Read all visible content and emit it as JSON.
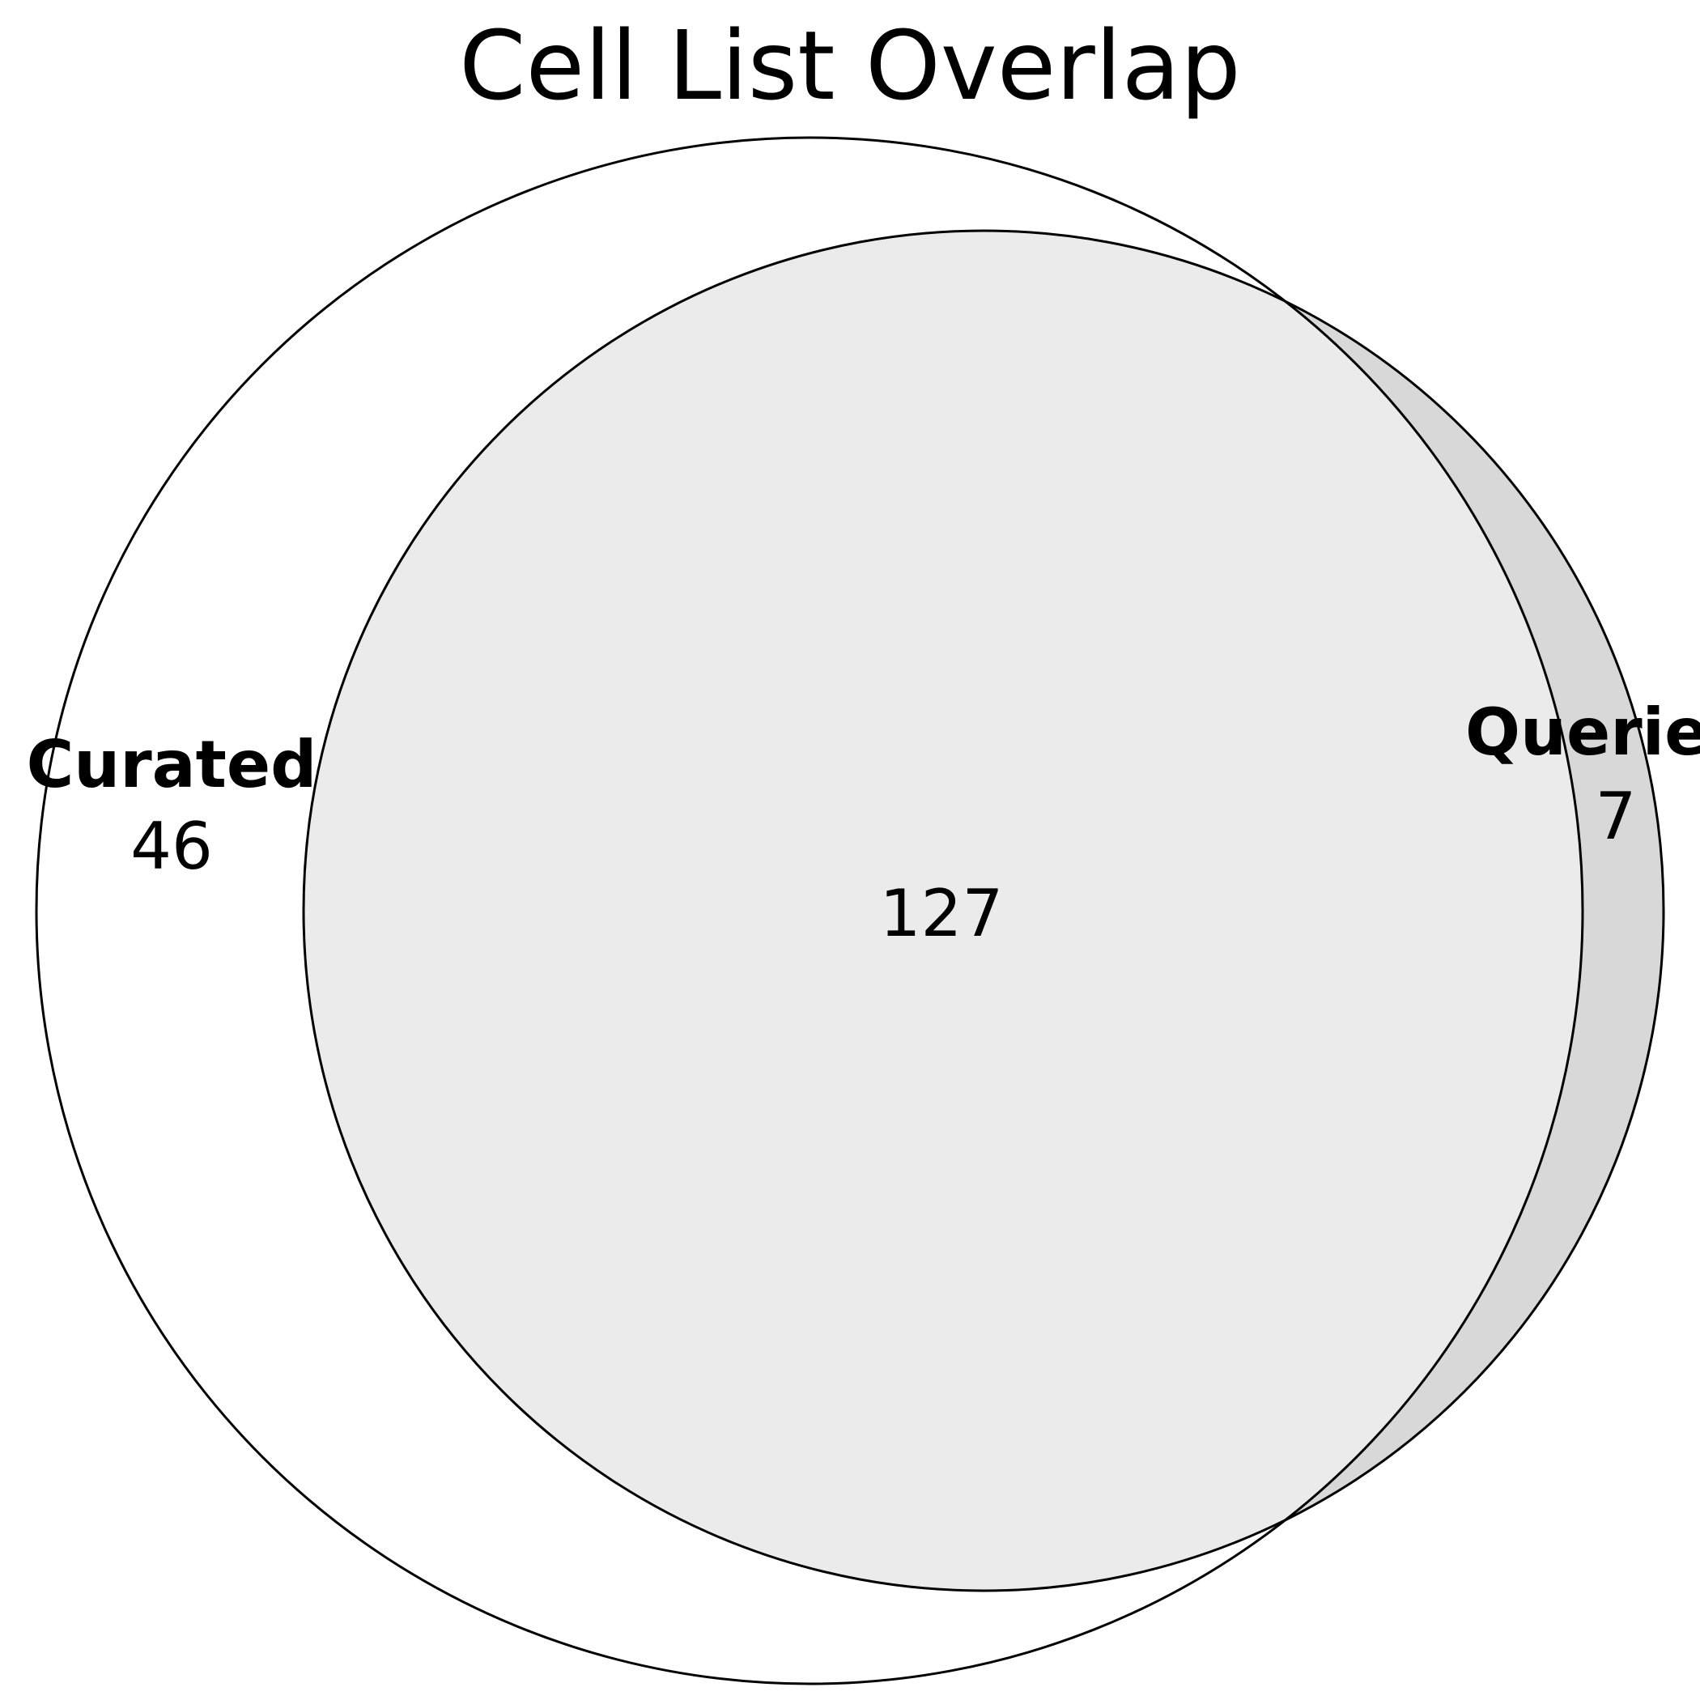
{
  "title": "Cell List Overlap",
  "sets": [
    {
      "label": "Curated",
      "only_count": "46"
    },
    {
      "label": "Queried",
      "only_count": "7"
    }
  ],
  "intersection_count": "127",
  "colors": {
    "background": "#ffffff",
    "outline": "#000000",
    "queried_only_fill": "#d8d8d8",
    "intersection_fill": "#ebebeb",
    "text": "#000000"
  }
}
